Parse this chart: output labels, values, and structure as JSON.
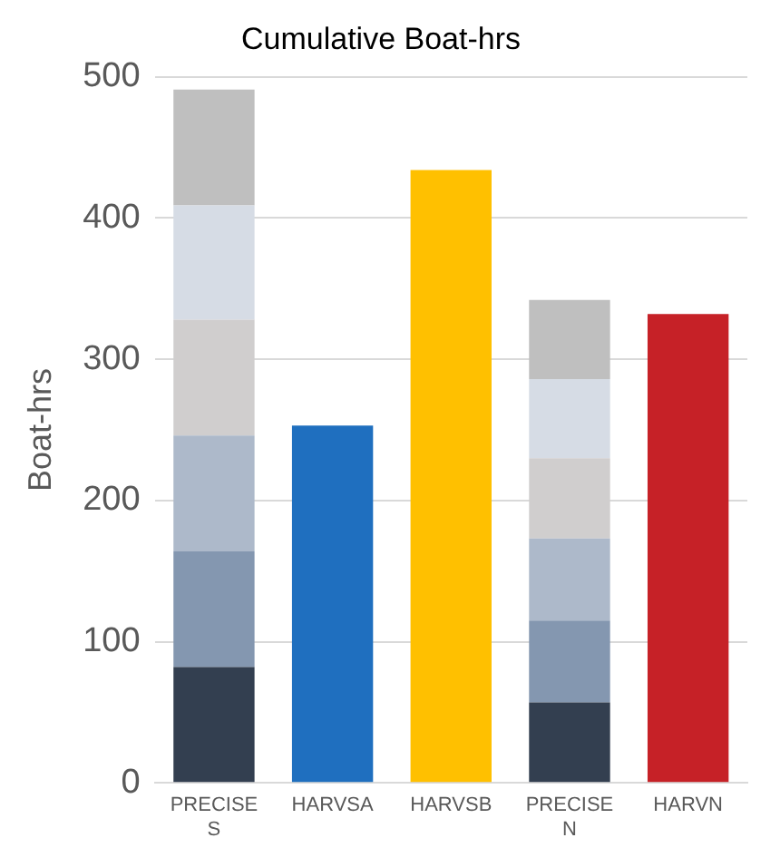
{
  "chart_data": {
    "type": "bar",
    "title": "Cumulative Boat-hrs",
    "ylabel": "Boat-hrs",
    "categories": [
      "PRECISE S",
      "HARVSA",
      "HARVSB",
      "PRECISE N",
      "HARVN"
    ],
    "stacked": true,
    "series": [
      {
        "color": "#333f50",
        "values": [
          82,
          null,
          null,
          57,
          null
        ]
      },
      {
        "color": "#8497b0",
        "values": [
          82,
          null,
          null,
          58,
          null
        ]
      },
      {
        "color": "#adb9ca",
        "values": [
          82,
          null,
          null,
          58,
          null
        ]
      },
      {
        "color": "#d0cece",
        "values": [
          82,
          null,
          null,
          57,
          null
        ]
      },
      {
        "color": "#d6dce5",
        "values": [
          81,
          null,
          null,
          56,
          null
        ]
      },
      {
        "color": "#bfbfbf",
        "values": [
          82,
          null,
          null,
          56,
          null
        ]
      },
      {
        "colors": [
          "#1f6fbf",
          "#1f6fbf",
          "#ffc000",
          "#c62127",
          "#c62127"
        ],
        "values": [
          null,
          253,
          434,
          null,
          332
        ]
      }
    ],
    "ylim": [
      0,
      500
    ],
    "yticks": [
      0,
      100,
      200,
      300,
      400,
      500
    ],
    "grid": "y",
    "legend": false
  }
}
